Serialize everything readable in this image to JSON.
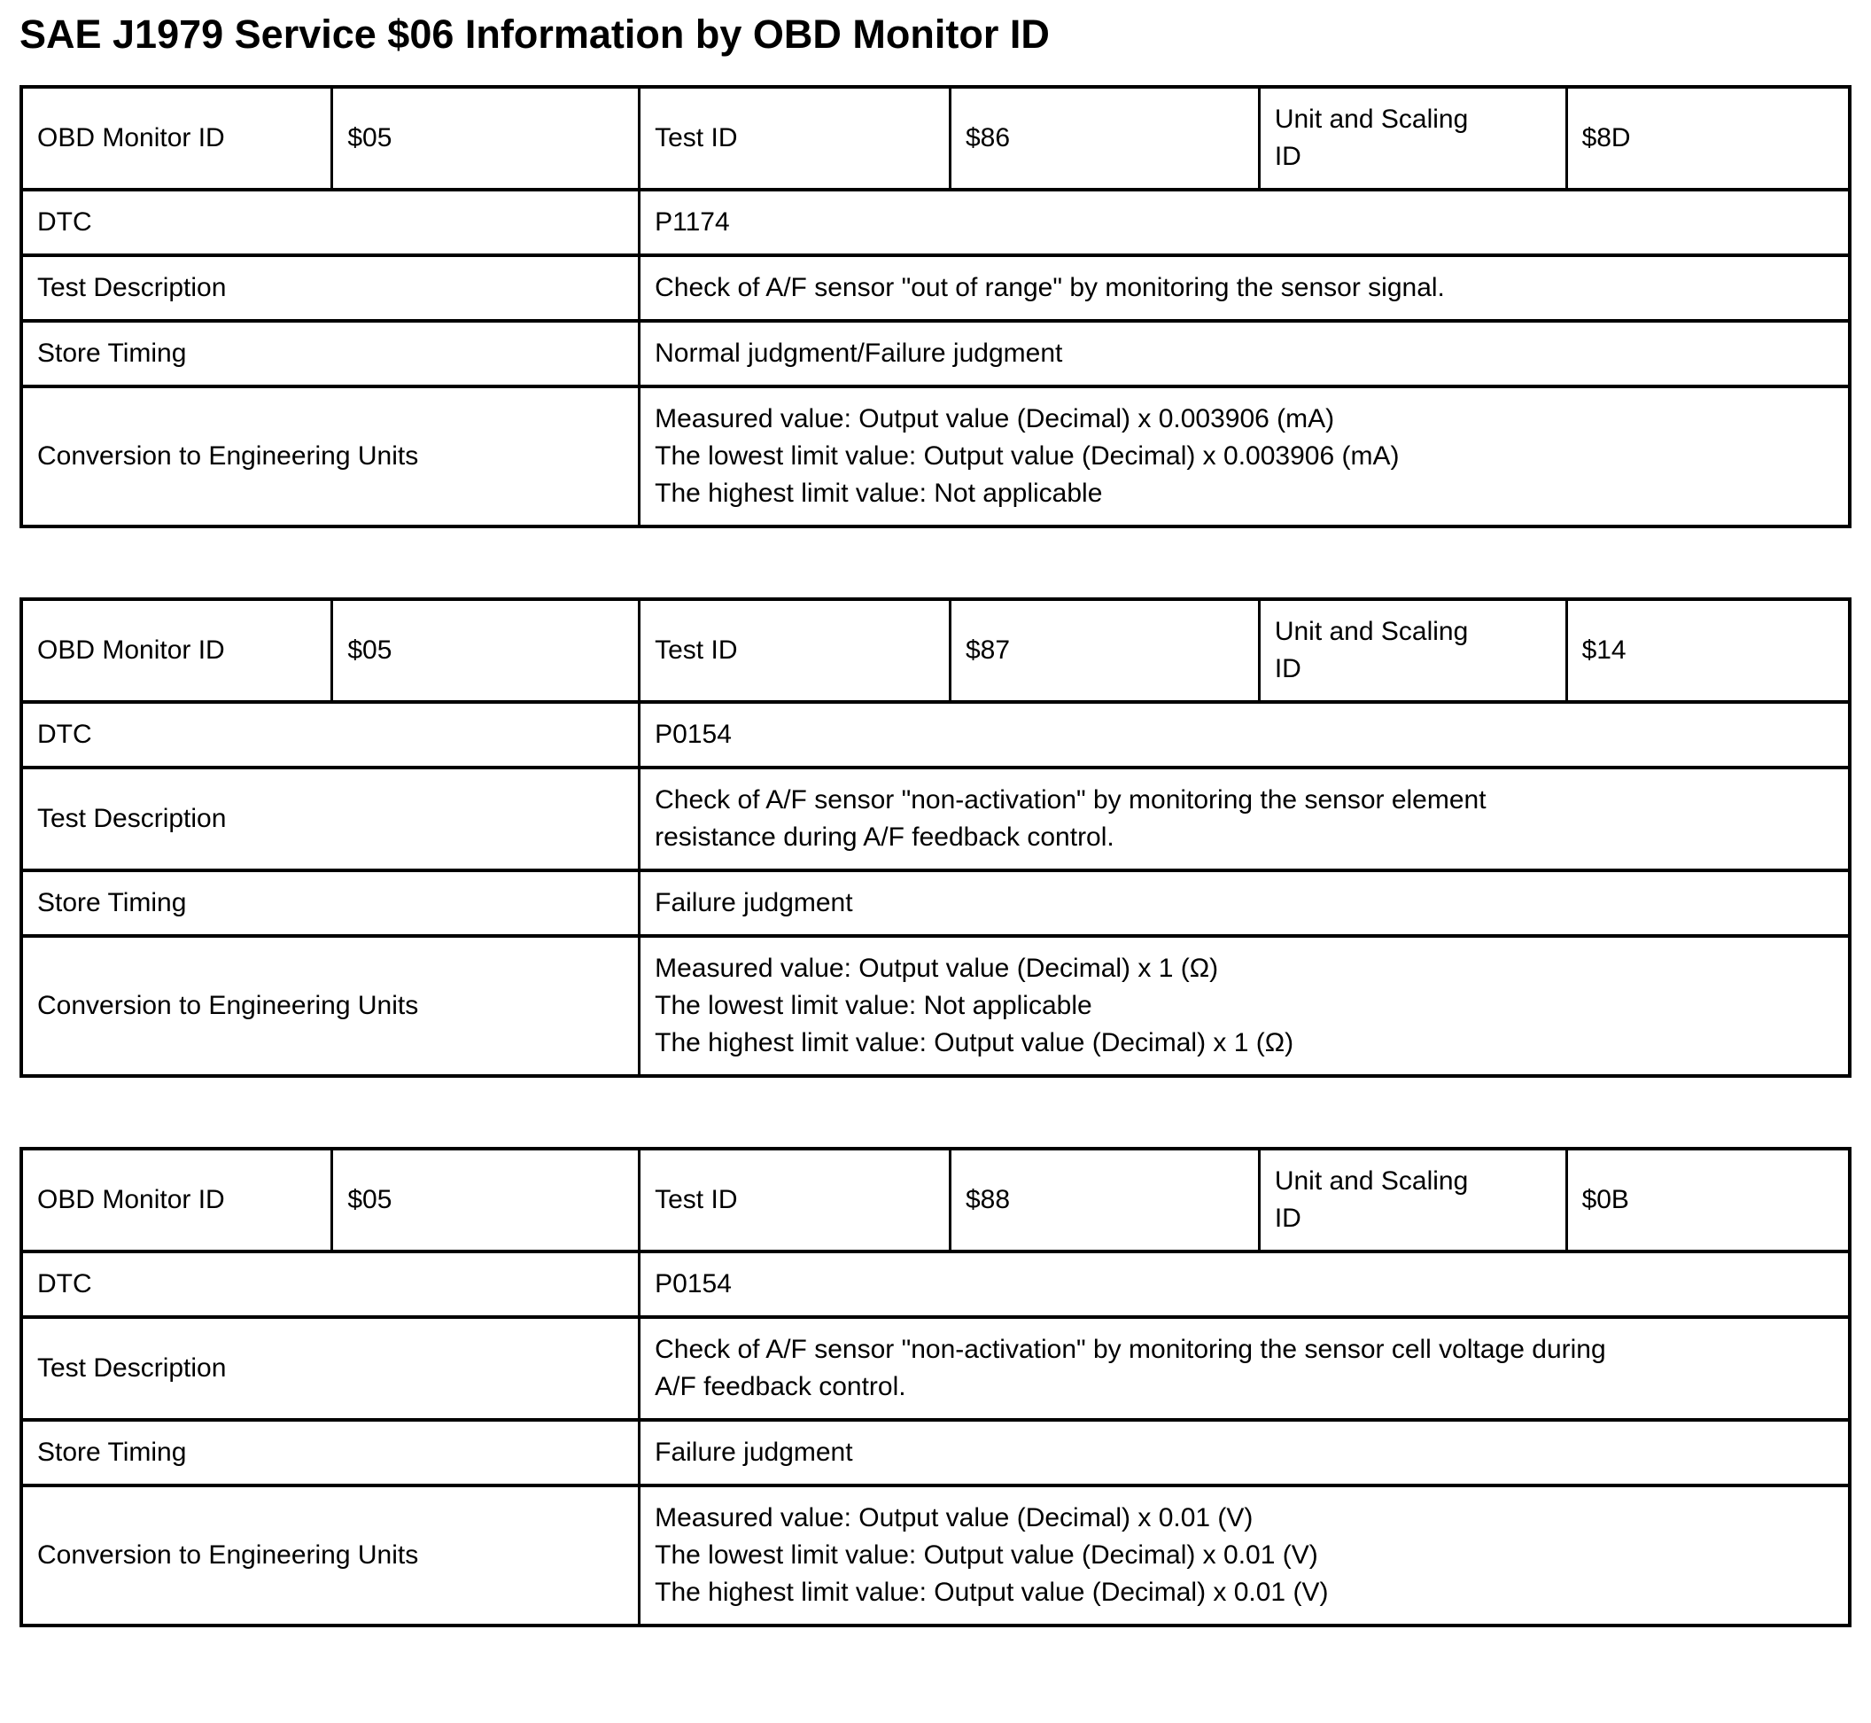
{
  "title": "SAE J1979 Service $06 Information by OBD Monitor ID",
  "field_labels": {
    "obd_monitor_id": "OBD Monitor ID",
    "test_id": "Test ID",
    "unit_and_scaling_id": "Unit and Scaling ID",
    "dtc": "DTC",
    "test_description": "Test Description",
    "store_timing": "Store Timing",
    "conversion": "Conversion to Engineering Units"
  },
  "monitors": [
    {
      "obd_monitor_id": "$05",
      "test_id": "$86",
      "unit_and_scaling_id": "$8D",
      "dtc": "P1174",
      "test_description_lines": [
        "Check of A/F sensor \"out of range\" by monitoring the sensor signal."
      ],
      "store_timing": "Normal judgment/Failure judgment",
      "conversion_lines": [
        "Measured value: Output value (Decimal) x 0.003906 (mA)",
        "The lowest limit value: Output value (Decimal) x 0.003906 (mA)",
        "The highest limit value: Not applicable"
      ]
    },
    {
      "obd_monitor_id": "$05",
      "test_id": "$87",
      "unit_and_scaling_id": "$14",
      "dtc": "P0154",
      "test_description_lines": [
        "Check of A/F sensor \"non-activation\" by monitoring the sensor element",
        "resistance during A/F feedback control."
      ],
      "store_timing": "Failure judgment",
      "conversion_lines": [
        "Measured value: Output value (Decimal) x 1 (Ω)",
        "The lowest limit value: Not applicable",
        "The highest limit value: Output value (Decimal) x 1 (Ω)"
      ]
    },
    {
      "obd_monitor_id": "$05",
      "test_id": "$88",
      "unit_and_scaling_id": "$0B",
      "dtc": "P0154",
      "test_description_lines": [
        "Check of A/F sensor \"non-activation\" by monitoring the sensor cell voltage during",
        "A/F feedback control."
      ],
      "store_timing": "Failure judgment",
      "conversion_lines": [
        "Measured value: Output value (Decimal) x 0.01 (V)",
        "The lowest limit value: Output value (Decimal) x 0.01 (V)",
        "The highest limit value: Output value (Decimal) x 0.01 (V)"
      ]
    }
  ]
}
